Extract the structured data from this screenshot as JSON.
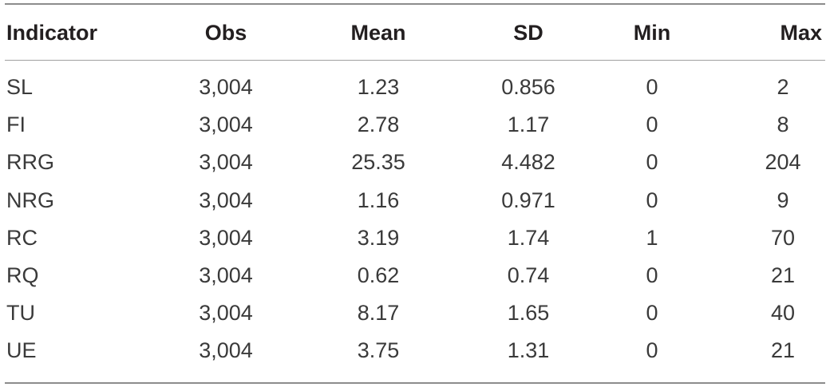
{
  "table": {
    "columns": [
      "Indicator",
      "Obs",
      "Mean",
      "SD",
      "Min",
      "Max"
    ],
    "rows": [
      [
        "SL",
        "3,004",
        "1.23",
        "0.856",
        "0",
        "2"
      ],
      [
        "FI",
        "3,004",
        "2.78",
        "1.17",
        "0",
        "8"
      ],
      [
        "RRG",
        "3,004",
        "25.35",
        "4.482",
        "0",
        "204"
      ],
      [
        "NRG",
        "3,004",
        "1.16",
        "0.971",
        "0",
        "9"
      ],
      [
        "RC",
        "3,004",
        "3.19",
        "1.74",
        "1",
        "70"
      ],
      [
        "RQ",
        "3,004",
        "0.62",
        "0.74",
        "0",
        "21"
      ],
      [
        "TU",
        "3,004",
        "8.17",
        "1.65",
        "0",
        "40"
      ],
      [
        "UE",
        "3,004",
        "3.75",
        "1.31",
        "0",
        "21"
      ]
    ]
  }
}
